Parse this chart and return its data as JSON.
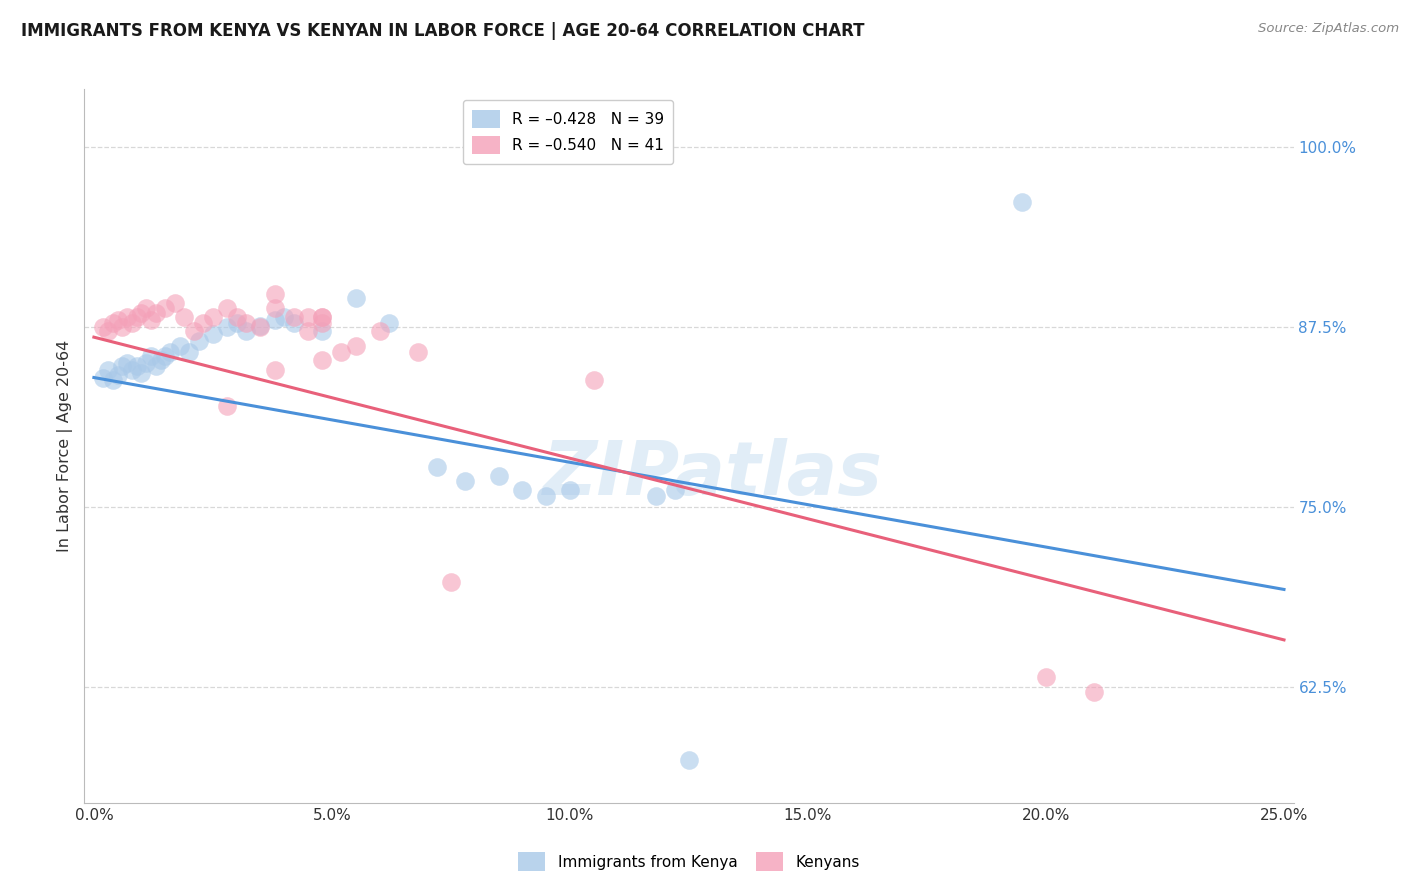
{
  "title": "IMMIGRANTS FROM KENYA VS KENYAN IN LABOR FORCE | AGE 20-64 CORRELATION CHART",
  "source": "Source: ZipAtlas.com",
  "xlabel_ticks": [
    "0.0%",
    "5.0%",
    "10.0%",
    "15.0%",
    "20.0%",
    "25.0%"
  ],
  "xlabel_values": [
    0.0,
    0.05,
    0.1,
    0.15,
    0.2,
    0.25
  ],
  "ylabel_ticks": [
    "62.5%",
    "75.0%",
    "87.5%",
    "100.0%"
  ],
  "ylabel_values": [
    0.625,
    0.75,
    0.875,
    1.0
  ],
  "ylabel_label": "In Labor Force | Age 20-64",
  "xlim": [
    -0.002,
    0.252
  ],
  "ylim": [
    0.545,
    1.04
  ],
  "legend_entries": [
    {
      "label": "R = –0.428   N = 39",
      "color": "#a8c8e8"
    },
    {
      "label": "R = –0.540   N = 41",
      "color": "#f4a0b8"
    }
  ],
  "legend_label_immigrants": "Immigrants from Kenya",
  "legend_label_kenyans": "Kenyans",
  "watermark": "ZIPatlas",
  "blue_color": "#a8c8e8",
  "pink_color": "#f4a0b8",
  "blue_scatter": [
    [
      0.002,
      0.84
    ],
    [
      0.003,
      0.845
    ],
    [
      0.004,
      0.838
    ],
    [
      0.005,
      0.842
    ],
    [
      0.006,
      0.848
    ],
    [
      0.007,
      0.85
    ],
    [
      0.008,
      0.845
    ],
    [
      0.009,
      0.848
    ],
    [
      0.01,
      0.843
    ],
    [
      0.011,
      0.85
    ],
    [
      0.012,
      0.855
    ],
    [
      0.013,
      0.848
    ],
    [
      0.014,
      0.852
    ],
    [
      0.015,
      0.855
    ],
    [
      0.016,
      0.858
    ],
    [
      0.018,
      0.862
    ],
    [
      0.02,
      0.858
    ],
    [
      0.022,
      0.865
    ],
    [
      0.025,
      0.87
    ],
    [
      0.028,
      0.875
    ],
    [
      0.03,
      0.878
    ],
    [
      0.032,
      0.872
    ],
    [
      0.035,
      0.876
    ],
    [
      0.038,
      0.88
    ],
    [
      0.04,
      0.882
    ],
    [
      0.042,
      0.878
    ],
    [
      0.048,
      0.872
    ],
    [
      0.055,
      0.895
    ],
    [
      0.062,
      0.878
    ],
    [
      0.072,
      0.778
    ],
    [
      0.078,
      0.768
    ],
    [
      0.085,
      0.772
    ],
    [
      0.09,
      0.762
    ],
    [
      0.095,
      0.758
    ],
    [
      0.1,
      0.762
    ],
    [
      0.118,
      0.758
    ],
    [
      0.122,
      0.762
    ],
    [
      0.195,
      0.962
    ],
    [
      0.125,
      0.575
    ]
  ],
  "pink_scatter": [
    [
      0.002,
      0.875
    ],
    [
      0.003,
      0.872
    ],
    [
      0.004,
      0.878
    ],
    [
      0.005,
      0.88
    ],
    [
      0.006,
      0.875
    ],
    [
      0.007,
      0.882
    ],
    [
      0.008,
      0.878
    ],
    [
      0.009,
      0.882
    ],
    [
      0.01,
      0.885
    ],
    [
      0.011,
      0.888
    ],
    [
      0.012,
      0.88
    ],
    [
      0.013,
      0.885
    ],
    [
      0.015,
      0.888
    ],
    [
      0.017,
      0.892
    ],
    [
      0.019,
      0.882
    ],
    [
      0.021,
      0.872
    ],
    [
      0.023,
      0.878
    ],
    [
      0.025,
      0.882
    ],
    [
      0.028,
      0.888
    ],
    [
      0.03,
      0.882
    ],
    [
      0.032,
      0.878
    ],
    [
      0.035,
      0.875
    ],
    [
      0.038,
      0.898
    ],
    [
      0.042,
      0.882
    ],
    [
      0.045,
      0.872
    ],
    [
      0.048,
      0.878
    ],
    [
      0.052,
      0.858
    ],
    [
      0.055,
      0.862
    ],
    [
      0.06,
      0.872
    ],
    [
      0.068,
      0.858
    ],
    [
      0.028,
      0.82
    ],
    [
      0.038,
      0.845
    ],
    [
      0.048,
      0.852
    ],
    [
      0.045,
      0.882
    ],
    [
      0.038,
      0.888
    ],
    [
      0.048,
      0.882
    ],
    [
      0.048,
      0.882
    ],
    [
      0.075,
      0.698
    ],
    [
      0.2,
      0.632
    ],
    [
      0.21,
      0.622
    ],
    [
      0.105,
      0.838
    ]
  ],
  "blue_line_x": [
    0.0,
    0.25
  ],
  "blue_line_y": [
    0.84,
    0.693
  ],
  "pink_line_x": [
    0.0,
    0.25
  ],
  "pink_line_y": [
    0.868,
    0.658
  ],
  "grid_color": "#d8d8d8",
  "background_color": "#ffffff",
  "blue_line_color": "#4a90d9",
  "pink_line_color": "#e8607a"
}
